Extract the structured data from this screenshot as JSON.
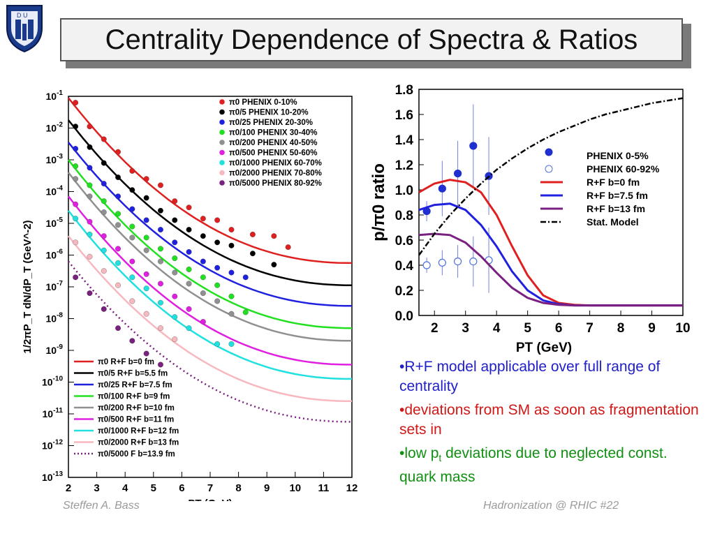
{
  "slide": {
    "title": "Centrality Dependence of Spectra & Ratios",
    "logo_text": "D U",
    "footer_left": "Steffen A. Bass",
    "footer_right": "Hadronization @ RHIC  #22"
  },
  "bullets": [
    {
      "text": "•R+F model applicable over full range of centrality",
      "color": "#2020c8"
    },
    {
      "text": "•deviations from SM as soon as fragmentation sets in",
      "color": "#d01818"
    },
    {
      "text": "•low p",
      "sub": "t",
      "tail": " deviations due to neglected const. quark mass",
      "color": "#109010"
    }
  ],
  "chart_data": [
    {
      "type": "scatter",
      "xlabel": "P_T (GeV)",
      "ylabel": "1/2πP_T dN/dP_T (GeV^-2)",
      "xlim": [
        2,
        12
      ],
      "ylim": [
        1e-13,
        0.1
      ],
      "y_scale": "log",
      "xticks": [
        2,
        3,
        4,
        5,
        6,
        7,
        8,
        9,
        10,
        11,
        12
      ],
      "yticks": [
        "10^-1",
        "10^-2",
        "10^-3",
        "10^-4",
        "10^-5",
        "10^-6",
        "10^-7",
        "10^-8",
        "10^-9",
        "10^-10",
        "10^-11",
        "10^-12",
        "10^-13"
      ],
      "legend_placement": "top-right",
      "series": [
        {
          "name": "π0 PHENIX 0-10%",
          "color": "#e02020",
          "x": [
            2.25,
            2.75,
            3.25,
            3.75,
            4.25,
            4.75,
            5.25,
            5.75,
            6.25,
            6.75,
            7.25,
            7.75,
            8.5,
            9.25,
            9.75
          ],
          "y": [
            -1.2,
            -1.95,
            -2.35,
            -2.75,
            -3.35,
            -3.6,
            -3.8,
            -4.3,
            -4.5,
            -4.85,
            -4.9,
            -5.2,
            -5.35,
            -5.4,
            -5.75
          ]
        },
        {
          "name": "π0/5 PHENIX 10-20%",
          "color": "#000000",
          "x": [
            2.25,
            2.75,
            3.25,
            3.75,
            4.25,
            4.75,
            5.25,
            5.75,
            6.25,
            6.75,
            7.25,
            7.75,
            8.5,
            9.25
          ],
          "y": [
            -1.95,
            -2.6,
            -3.1,
            -3.55,
            -3.95,
            -4.2,
            -4.6,
            -4.9,
            -5.2,
            -5.4,
            -5.6,
            -5.7,
            -5.95,
            -6.3
          ]
        },
        {
          "name": "π0/25 PHENIX 20-30%",
          "color": "#2020e0",
          "x": [
            2.25,
            2.75,
            3.25,
            3.75,
            4.25,
            4.75,
            5.25,
            5.75,
            6.25,
            6.75,
            7.25,
            7.75,
            8.25
          ],
          "y": [
            -2.65,
            -3.25,
            -3.75,
            -4.15,
            -4.55,
            -4.9,
            -5.2,
            -5.6,
            -5.9,
            -6.2,
            -6.4,
            -6.55,
            -6.7
          ]
        },
        {
          "name": "π0/100 PHENIX 30-40%",
          "color": "#20e020",
          "x": [
            2.25,
            2.75,
            3.25,
            3.75,
            4.25,
            4.75,
            5.25,
            5.75,
            6.25,
            6.75,
            7.25,
            7.75,
            8.25
          ],
          "y": [
            -3.2,
            -3.8,
            -4.3,
            -4.7,
            -5.1,
            -5.45,
            -5.8,
            -6.1,
            -6.45,
            -6.7,
            -6.95,
            -7.3,
            -7.8
          ]
        },
        {
          "name": "π0/200 PHENIX 40-50%",
          "color": "#909090",
          "x": [
            2.25,
            2.75,
            3.25,
            3.75,
            4.25,
            4.75,
            5.25,
            5.75,
            6.25,
            6.75,
            7.25,
            7.75
          ],
          "y": [
            -3.6,
            -4.15,
            -4.65,
            -5.05,
            -5.45,
            -5.85,
            -6.2,
            -6.55,
            -6.9,
            -7.2,
            -7.45,
            -7.85
          ]
        },
        {
          "name": "π0/500 PHENIX 50-60%",
          "color": "#e020e0",
          "x": [
            2.25,
            2.75,
            3.25,
            3.75,
            4.25,
            4.75,
            5.25,
            5.75,
            6.25,
            6.75
          ],
          "y": [
            -4.4,
            -4.95,
            -5.4,
            -5.8,
            -6.2,
            -6.6,
            -6.9,
            -7.3,
            -7.7,
            -8.1
          ]
        },
        {
          "name": "π0/1000 PHENIX 60-70%",
          "color": "#20e0e0",
          "x": [
            2.25,
            2.75,
            3.25,
            3.75,
            4.25,
            4.75,
            5.25,
            5.75,
            6.25,
            7.25,
            7.75
          ],
          "y": [
            -4.85,
            -5.35,
            -5.85,
            -6.25,
            -6.7,
            -7.05,
            -7.5,
            -7.95,
            -8.3,
            -8.8,
            -8.8
          ]
        },
        {
          "name": "π0/2000 PHENIX 70-80%",
          "color": "#f8b8c0",
          "x": [
            2.25,
            2.75,
            3.25,
            3.75,
            4.25,
            4.75,
            5.25,
            5.75
          ],
          "y": [
            -5.6,
            -6.05,
            -6.5,
            -6.95,
            -7.45,
            -7.85,
            -8.3,
            -8.65
          ]
        },
        {
          "name": "π0/5000 PHENIX 80-92%",
          "color": "#7a2080",
          "x": [
            2.25,
            2.75,
            3.25,
            3.75,
            4.25,
            4.75,
            5.25
          ],
          "y": [
            -6.7,
            -7.2,
            -7.7,
            -8.3,
            -8.7,
            -9.1,
            -9.45
          ]
        }
      ],
      "curves": [
        {
          "name": "π0 R+F b=0 fm",
          "color": "#e02020",
          "style": "solid",
          "y_at_2": -1.05,
          "y_at_12": -6.25
        },
        {
          "name": "π0/5 R+F b=5.5 fm",
          "color": "#000000",
          "style": "solid",
          "y_at_2": -1.75,
          "y_at_12": -6.95
        },
        {
          "name": "π0/25 R+F b=7.5 fm",
          "color": "#2020e0",
          "style": "solid",
          "y_at_2": -2.45,
          "y_at_12": -7.6
        },
        {
          "name": "π0/100 R+F b=9 fm",
          "color": "#20e020",
          "style": "solid",
          "y_at_2": -3.0,
          "y_at_12": -8.3
        },
        {
          "name": "π0/200 R+F b=10 fm",
          "color": "#909090",
          "style": "solid",
          "y_at_2": -3.4,
          "y_at_12": -8.7
        },
        {
          "name": "π0/500 R+F b=11 fm",
          "color": "#e020e0",
          "style": "solid",
          "y_at_2": -4.15,
          "y_at_12": -9.45
        },
        {
          "name": "π0/1000 R+F b=12 fm",
          "color": "#20e0e0",
          "style": "solid",
          "y_at_2": -4.6,
          "y_at_12": -9.9
        },
        {
          "name": "π0/2000 R+F b=13 fm",
          "color": "#f8b8c0",
          "style": "solid",
          "y_at_2": -5.4,
          "y_at_12": -10.6
        },
        {
          "name": "π0/5000 F b=13.9 fm",
          "color": "#7a2080",
          "style": "dotted",
          "y_at_2": -6.2,
          "y_at_12": -11.25
        }
      ],
      "bottom_legend_placement": "bottom-left"
    },
    {
      "type": "line",
      "xlabel": "P_T (GeV)",
      "ylabel": "p/π0 ratio",
      "xlim": [
        1.5,
        10
      ],
      "ylim": [
        0,
        1.8
      ],
      "xticks": [
        2,
        3,
        4,
        5,
        6,
        7,
        8,
        9,
        10
      ],
      "yticks": [
        0.0,
        0.2,
        0.4,
        0.6,
        0.8,
        1.0,
        1.2,
        1.4,
        1.6,
        1.8
      ],
      "legend_placement": "right",
      "series": [
        {
          "name": "PHENIX 0-5%",
          "marker": "filled",
          "color": "#2030d0",
          "x": [
            1.75,
            2.25,
            2.75,
            3.25,
            3.75
          ],
          "y": [
            0.83,
            1.01,
            1.13,
            1.35,
            1.11
          ],
          "err": [
            0.08,
            0.22,
            0.26,
            0.33,
            0.31
          ]
        },
        {
          "name": "PHENIX 60-92%",
          "marker": "open",
          "color": "#5070e0",
          "x": [
            1.75,
            2.25,
            2.75,
            3.25,
            3.75
          ],
          "y": [
            0.4,
            0.42,
            0.43,
            0.43,
            0.44
          ],
          "err": [
            0.06,
            0.1,
            0.13,
            0.2,
            0.26
          ]
        },
        {
          "name": "R+F b=0 fm",
          "color": "#e02020",
          "style": "solid",
          "x": [
            1.5,
            2.0,
            2.5,
            3.0,
            3.5,
            4.0,
            4.5,
            5.0,
            5.5,
            6.0,
            6.5,
            7.0,
            8.0,
            9.0,
            10.0
          ],
          "y": [
            0.98,
            1.05,
            1.08,
            1.06,
            0.98,
            0.8,
            0.55,
            0.32,
            0.16,
            0.1,
            0.085,
            0.08,
            0.08,
            0.08,
            0.08
          ]
        },
        {
          "name": "R+F b=7.5 fm",
          "color": "#2020e0",
          "style": "solid",
          "x": [
            1.5,
            2.0,
            2.5,
            3.0,
            3.5,
            4.0,
            4.5,
            5.0,
            5.5,
            6.0,
            6.5,
            7.0,
            8.0,
            9.0,
            10.0
          ],
          "y": [
            0.84,
            0.88,
            0.89,
            0.84,
            0.72,
            0.55,
            0.35,
            0.2,
            0.12,
            0.09,
            0.08,
            0.08,
            0.08,
            0.08,
            0.08
          ]
        },
        {
          "name": "R+F b=13 fm",
          "color": "#7a2080",
          "style": "solid",
          "x": [
            1.5,
            2.0,
            2.5,
            3.0,
            3.5,
            4.0,
            4.5,
            5.0,
            5.5,
            6.0,
            6.5,
            7.0,
            8.0,
            9.0,
            10.0
          ],
          "y": [
            0.64,
            0.65,
            0.64,
            0.58,
            0.47,
            0.34,
            0.22,
            0.14,
            0.1,
            0.085,
            0.08,
            0.08,
            0.08,
            0.08,
            0.08
          ]
        },
        {
          "name": "Stat. Model",
          "color": "#000000",
          "style": "dashdot",
          "x": [
            1.5,
            2.0,
            2.5,
            3.0,
            3.5,
            4.0,
            4.5,
            5.0,
            5.5,
            6.0,
            6.5,
            7.0,
            7.5,
            8.0,
            8.5,
            9.0,
            9.5,
            10.0
          ],
          "y": [
            0.48,
            0.65,
            0.8,
            0.93,
            1.05,
            1.16,
            1.25,
            1.33,
            1.4,
            1.46,
            1.51,
            1.56,
            1.6,
            1.63,
            1.66,
            1.69,
            1.71,
            1.73
          ]
        }
      ]
    }
  ]
}
